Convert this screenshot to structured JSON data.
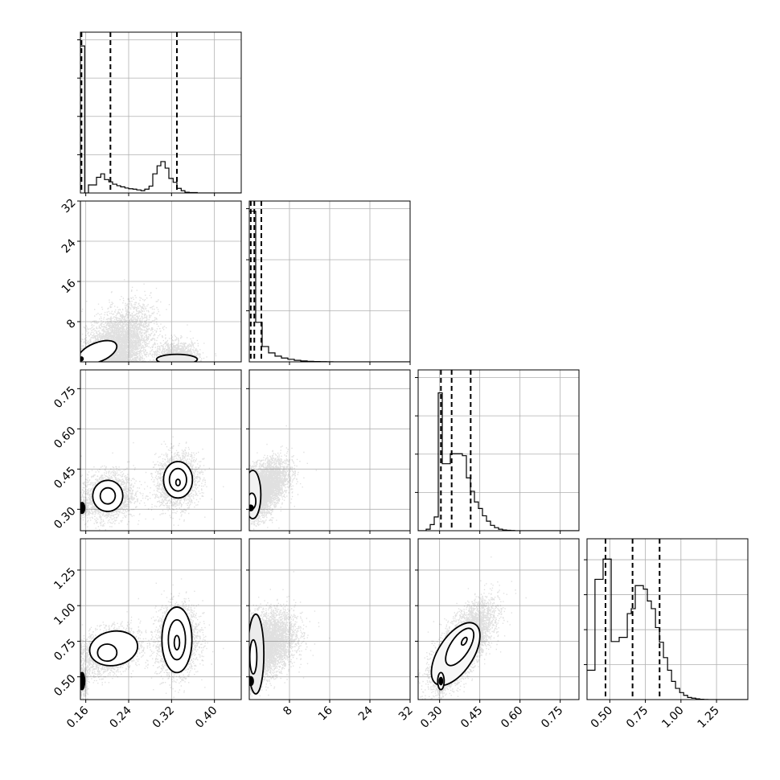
{
  "chart_data": {
    "type": "corner",
    "parameters": [
      {
        "name": "",
        "range": [
          0.15,
          0.45
        ],
        "ticks": [
          "0.16",
          "0.24",
          "0.32",
          "0.40"
        ],
        "tick_values": [
          0.16,
          0.24,
          0.32,
          0.4
        ],
        "quantiles": [
          0.152,
          0.206,
          0.33
        ],
        "hist": {
          "edges": [
            0.15,
            0.158,
            0.165,
            0.172,
            0.18,
            0.188,
            0.195,
            0.203,
            0.21,
            0.218,
            0.225,
            0.233,
            0.24,
            0.248,
            0.255,
            0.263,
            0.27,
            0.278,
            0.285,
            0.293,
            0.3,
            0.308,
            0.315,
            0.323,
            0.33,
            0.338,
            0.345,
            0.353,
            0.36,
            0.368,
            0.375,
            0.383,
            0.39,
            0.398,
            0.405,
            0.413,
            0.42,
            0.428,
            0.435,
            0.443,
            0.45
          ],
          "counts": [
            3840,
            0,
            210,
            210,
            410,
            500,
            350,
            290,
            230,
            190,
            160,
            130,
            110,
            100,
            80,
            60,
            100,
            180,
            500,
            710,
            820,
            650,
            380,
            280,
            120,
            60,
            20,
            10,
            10,
            0,
            0,
            0,
            0,
            0,
            0,
            0,
            0,
            0,
            0,
            0
          ],
          "ylim": [
            0,
            4200
          ],
          "yticks": [
            1000,
            2000,
            3000,
            4000
          ]
        }
      },
      {
        "name": "",
        "range": [
          0,
          32
        ],
        "ticks": [
          "8",
          "16",
          "24",
          "32"
        ],
        "tick_values": [
          8,
          16,
          24,
          32
        ],
        "quantiles": [
          0.3,
          1.0,
          2.4
        ],
        "hist": {
          "edges": [
            0,
            1.28,
            2.56,
            3.84,
            5.12,
            6.4,
            7.68,
            8.96,
            10.24,
            11.52,
            12.8,
            14.08,
            15.36,
            16.64,
            17.92,
            19.2,
            20.48,
            21.76,
            23.04,
            24.32,
            25.6,
            26.88,
            28.16,
            29.44,
            30.72,
            32.0
          ],
          "counts": [
            11800,
            3100,
            1200,
            700,
            450,
            300,
            200,
            120,
            70,
            40,
            25,
            15,
            10,
            5,
            3,
            2,
            1,
            1,
            0,
            0,
            0,
            0,
            0,
            0,
            0
          ],
          "ylim": [
            0,
            12600
          ],
          "yticks": [
            4000,
            8000,
            12000
          ]
        }
      },
      {
        "name": "",
        "range": [
          0.22,
          0.82
        ],
        "ticks": [
          "0.30",
          "0.45",
          "0.60",
          "0.75"
        ],
        "tick_values": [
          0.3,
          0.45,
          0.6,
          0.75
        ],
        "quantiles": [
          0.305,
          0.345,
          0.416
        ],
        "hist": {
          "edges": [
            0.22,
            0.235,
            0.25,
            0.265,
            0.28,
            0.295,
            0.31,
            0.325,
            0.34,
            0.355,
            0.37,
            0.385,
            0.4,
            0.415,
            0.43,
            0.445,
            0.46,
            0.475,
            0.49,
            0.505,
            0.52,
            0.535,
            0.55,
            0.565,
            0.58,
            0.595,
            0.61,
            0.625,
            0.64,
            0.655,
            0.67,
            0.685,
            0.7,
            0.715,
            0.73,
            0.745,
            0.76,
            0.775,
            0.79,
            0.805,
            0.82
          ],
          "counts": [
            0,
            0,
            40,
            160,
            360,
            3600,
            1750,
            1750,
            2010,
            2010,
            2010,
            1960,
            1380,
            1030,
            750,
            580,
            390,
            250,
            140,
            80,
            40,
            20,
            10,
            5,
            0,
            0,
            0,
            0,
            0,
            0,
            0,
            0,
            0,
            0,
            0,
            0,
            0,
            0,
            0,
            0
          ],
          "ylim": [
            0,
            4200
          ],
          "yticks": [
            1000,
            2000,
            3000,
            4000
          ]
        }
      },
      {
        "name": "",
        "range": [
          0.34,
          1.47
        ],
        "ticks": [
          "0.50",
          "0.75",
          "1.00",
          "1.25"
        ],
        "tick_values": [
          0.5,
          0.75,
          1.0,
          1.25
        ],
        "quantiles": [
          0.47,
          0.66,
          0.85
        ],
        "hist": {
          "edges": [
            0.34,
            0.368,
            0.396,
            0.425,
            0.453,
            0.481,
            0.51,
            0.538,
            0.566,
            0.594,
            0.623,
            0.651,
            0.679,
            0.708,
            0.736,
            0.764,
            0.792,
            0.821,
            0.849,
            0.877,
            0.906,
            0.934,
            0.962,
            0.991,
            1.019,
            1.047,
            1.075,
            1.104,
            1.132,
            1.16,
            1.189,
            1.217,
            1.245,
            1.274,
            1.302,
            1.33,
            1.358,
            1.387,
            1.415,
            1.443,
            1.47
          ],
          "counts": [
            420,
            420,
            1720,
            1720,
            2010,
            2010,
            830,
            830,
            890,
            890,
            1230,
            1300,
            1630,
            1630,
            1580,
            1410,
            1300,
            1030,
            820,
            600,
            420,
            260,
            160,
            100,
            60,
            30,
            20,
            10,
            5,
            2,
            0,
            0,
            0,
            0,
            0,
            0,
            0,
            0,
            0,
            0
          ],
          "ylim": [
            0,
            2300
          ],
          "yticks": [
            500,
            1000,
            1500,
            2000
          ]
        }
      }
    ],
    "pairs": [
      {
        "x_param": 0,
        "y_param": 1,
        "clusters": [
          {
            "cx": 0.22,
            "cy": 3.0,
            "sx": 0.03,
            "sy": 4.0,
            "n": 4200,
            "rho": 0.45
          },
          {
            "cx": 0.33,
            "cy": 1.2,
            "sx": 0.02,
            "sy": 1.5,
            "n": 1200,
            "rho": 0.0
          },
          {
            "cx": 0.155,
            "cy": 0.5,
            "sx": 0.005,
            "sy": 0.5,
            "n": 300,
            "rho": 0.0
          }
        ],
        "contours": [
          {
            "cx": 0.182,
            "cy": 1.9,
            "rx": 0.038,
            "ry": 1.9,
            "angle": -22,
            "fill": "#ffffff"
          },
          {
            "cx": 0.33,
            "cy": 0.5,
            "rx": 0.038,
            "ry": 1.0,
            "angle": 0,
            "fill": "#ececec"
          },
          {
            "cx": 0.152,
            "cy": 0.6,
            "rx": 0.003,
            "ry": 0.35,
            "angle": 0,
            "fill": "#000000"
          }
        ]
      },
      {
        "x_param": 0,
        "y_param": 2,
        "clusters": [
          {
            "cx": 0.2,
            "cy": 0.35,
            "sx": 0.025,
            "sy": 0.045,
            "n": 2000,
            "rho": 0.1
          },
          {
            "cx": 0.33,
            "cy": 0.41,
            "sx": 0.02,
            "sy": 0.05,
            "n": 2000,
            "rho": 0.1
          },
          {
            "cx": 0.155,
            "cy": 0.305,
            "sx": 0.004,
            "sy": 0.01,
            "n": 400,
            "rho": 0.0
          }
        ],
        "contours": [
          {
            "cx": 0.201,
            "cy": 0.35,
            "rx": 0.028,
            "ry": 0.058,
            "angle": 5,
            "fill": "#ffffff"
          },
          {
            "cx": 0.201,
            "cy": 0.35,
            "rx": 0.014,
            "ry": 0.03,
            "angle": 5,
            "fill": "#ffffff"
          },
          {
            "cx": 0.332,
            "cy": 0.41,
            "rx": 0.027,
            "ry": 0.068,
            "angle": 0,
            "fill": "#ffffff"
          },
          {
            "cx": 0.332,
            "cy": 0.41,
            "rx": 0.016,
            "ry": 0.042,
            "angle": 0,
            "fill": "#ffffff"
          },
          {
            "cx": 0.332,
            "cy": 0.4,
            "rx": 0.004,
            "ry": 0.012,
            "angle": 0,
            "fill": "#ffffff"
          },
          {
            "cx": 0.153,
            "cy": 0.305,
            "rx": 0.005,
            "ry": 0.02,
            "angle": 0,
            "fill": "#000000"
          }
        ]
      },
      {
        "x_param": 0,
        "y_param": 3,
        "clusters": [
          {
            "cx": 0.2,
            "cy": 0.68,
            "sx": 0.03,
            "sy": 0.08,
            "n": 2400,
            "rho": 0.3
          },
          {
            "cx": 0.33,
            "cy": 0.76,
            "sx": 0.02,
            "sy": 0.12,
            "n": 2400,
            "rho": 0.1
          },
          {
            "cx": 0.155,
            "cy": 0.47,
            "sx": 0.004,
            "sy": 0.05,
            "n": 400,
            "rho": 0.0
          }
        ],
        "contours": [
          {
            "cx": 0.212,
            "cy": 0.7,
            "rx": 0.045,
            "ry": 0.12,
            "angle": -10,
            "fill": "#ffffff"
          },
          {
            "cx": 0.2,
            "cy": 0.67,
            "rx": 0.018,
            "ry": 0.06,
            "angle": 0,
            "fill": "#ffffff"
          },
          {
            "cx": 0.33,
            "cy": 0.76,
            "rx": 0.028,
            "ry": 0.23,
            "angle": 0,
            "fill": "#ffffff"
          },
          {
            "cx": 0.33,
            "cy": 0.76,
            "rx": 0.016,
            "ry": 0.14,
            "angle": 0,
            "fill": "#ffffff"
          },
          {
            "cx": 0.33,
            "cy": 0.74,
            "rx": 0.005,
            "ry": 0.05,
            "angle": 0,
            "fill": "#ffffff"
          },
          {
            "cx": 0.153,
            "cy": 0.47,
            "rx": 0.005,
            "ry": 0.06,
            "angle": 0,
            "fill": "#000000"
          }
        ]
      },
      {
        "x_param": 1,
        "y_param": 2,
        "clusters": [
          {
            "cx": 2.5,
            "cy": 0.38,
            "sx": 2.5,
            "sy": 0.05,
            "n": 4500,
            "rho": 0.5
          },
          {
            "cx": 0.4,
            "cy": 0.305,
            "sx": 0.3,
            "sy": 0.01,
            "n": 600,
            "rho": 0.0
          }
        ],
        "contours": [
          {
            "cx": 0.7,
            "cy": 0.355,
            "rx": 1.6,
            "ry": 0.09,
            "angle": 0,
            "fill": "#f2f2f2"
          },
          {
            "cx": 0.5,
            "cy": 0.33,
            "rx": 0.8,
            "ry": 0.03,
            "angle": 0,
            "fill": "#ffffff"
          },
          {
            "cx": 0.3,
            "cy": 0.305,
            "rx": 0.5,
            "ry": 0.01,
            "angle": 0,
            "fill": "#000000"
          }
        ]
      },
      {
        "x_param": 1,
        "y_param": 3,
        "clusters": [
          {
            "cx": 3.0,
            "cy": 0.73,
            "sx": 3.0,
            "sy": 0.11,
            "n": 4800,
            "rho": 0.3
          },
          {
            "cx": 0.4,
            "cy": 0.47,
            "sx": 0.3,
            "sy": 0.03,
            "n": 600,
            "rho": 0.0
          }
        ],
        "contours": [
          {
            "cx": 1.3,
            "cy": 0.66,
            "rx": 1.6,
            "ry": 0.28,
            "angle": 0,
            "fill": "#ececec"
          },
          {
            "cx": 0.8,
            "cy": 0.64,
            "rx": 0.7,
            "ry": 0.12,
            "angle": 0,
            "fill": "#ffffff"
          },
          {
            "cx": 0.3,
            "cy": 0.47,
            "rx": 0.5,
            "ry": 0.03,
            "angle": 0,
            "fill": "#000000"
          }
        ]
      },
      {
        "x_param": 2,
        "y_param": 3,
        "clusters": [
          {
            "cx": 0.385,
            "cy": 0.73,
            "sx": 0.055,
            "sy": 0.14,
            "n": 5500,
            "rho": 0.7
          },
          {
            "cx": 0.305,
            "cy": 0.47,
            "sx": 0.008,
            "sy": 0.04,
            "n": 500,
            "rho": 0.0
          }
        ],
        "contours": [
          {
            "cx": 0.36,
            "cy": 0.66,
            "rx": 0.065,
            "ry": 0.25,
            "angle": 33,
            "fill": "#f7f7f7"
          },
          {
            "cx": 0.375,
            "cy": 0.71,
            "rx": 0.035,
            "ry": 0.15,
            "angle": 33,
            "fill": "#ffffff"
          },
          {
            "cx": 0.392,
            "cy": 0.75,
            "rx": 0.008,
            "ry": 0.03,
            "angle": 30,
            "fill": "#ffffff"
          },
          {
            "cx": 0.305,
            "cy": 0.47,
            "rx": 0.012,
            "ry": 0.06,
            "angle": 0,
            "fill": "#ffffff"
          },
          {
            "cx": 0.305,
            "cy": 0.47,
            "rx": 0.006,
            "ry": 0.025,
            "angle": 0,
            "fill": "#000000"
          }
        ]
      }
    ],
    "grid": true,
    "quantile_line_style": "dashed",
    "colors": {
      "line": "#000000",
      "grid": "#b0b0b0",
      "points": "#000000"
    }
  }
}
